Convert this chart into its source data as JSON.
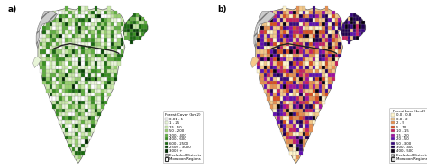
{
  "fig_width": 4.74,
  "fig_height": 1.87,
  "dpi": 100,
  "bg_color": "#ffffff",
  "panel_a_label": "a)",
  "panel_b_label": "b)",
  "legend_a_title": "Forest Cover (km2)",
  "legend_a_entries": [
    {
      "label": "0.01 - 1",
      "color": "#ffffff"
    },
    {
      "label": "1 - 25",
      "color": "#e8f5d8"
    },
    {
      "label": "25 - 50",
      "color": "#c8e8a8"
    },
    {
      "label": "50 - 200",
      "color": "#98d070"
    },
    {
      "label": "200 - 400",
      "color": "#60b040"
    },
    {
      "label": "400 - 600",
      "color": "#389020"
    },
    {
      "label": "600 - 2500",
      "color": "#1a6a10"
    },
    {
      "label": "2500 - 3000",
      "color": "#0a4808"
    },
    {
      "label": "3000 +",
      "color": "#002800"
    },
    {
      "label": "Excluded Districts",
      "color": "#c8c8c8",
      "hatch": "///"
    },
    {
      "label": "Monsoon Regions",
      "color": "#ffffff",
      "hatch": ""
    }
  ],
  "legend_b_title": "Forest Loss (km2)",
  "legend_b_entries": [
    {
      "label": "0.0 - 0.8",
      "color": "#fff5cc"
    },
    {
      "label": "0.8 - 2",
      "color": "#f5c98a"
    },
    {
      "label": "2 - 5",
      "color": "#e89050"
    },
    {
      "label": "5 - 10",
      "color": "#d85020"
    },
    {
      "label": "10 - 15",
      "color": "#c82060"
    },
    {
      "label": "15 - 20",
      "color": "#a010a0"
    },
    {
      "label": "20 - 50",
      "color": "#6010b0"
    },
    {
      "label": "50 - 300",
      "color": "#3a0880"
    },
    {
      "label": "300 - 400",
      "color": "#200050"
    },
    {
      "label": "400 - 500",
      "color": "#080010"
    },
    {
      "label": "Excluded Districts",
      "color": "#c8c8c8",
      "hatch": "///"
    },
    {
      "label": "Monsoon Regions",
      "color": "#dddddd",
      "hatch": ""
    }
  ]
}
